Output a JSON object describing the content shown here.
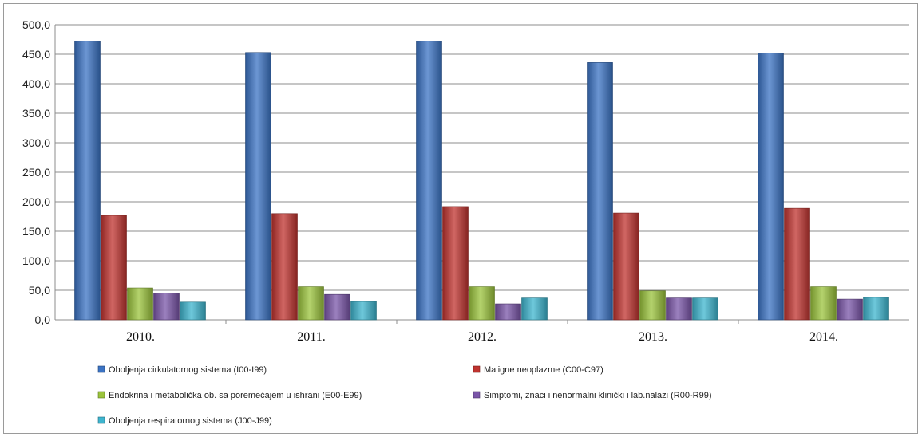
{
  "chart_data": {
    "type": "bar",
    "categories": [
      "2010.",
      "2011.",
      "2012.",
      "2013.",
      "2014."
    ],
    "ylim": [
      0,
      500
    ],
    "y_ticks": [
      "0,0",
      "50,0",
      "100,0",
      "150,0",
      "200,0",
      "250,0",
      "300,0",
      "350,0",
      "400,0",
      "450,0",
      "500,0"
    ],
    "grid": true,
    "legend_position": "bottom",
    "series": [
      {
        "name": "Oboljenja cirkulatornog sistema (I00-I99)",
        "color": "#3b73c4",
        "values": [
          472,
          453,
          472,
          436,
          452
        ]
      },
      {
        "name": "Maligne neoplazme (C00-C97)",
        "color": "#c0332f",
        "values": [
          177,
          180,
          192,
          181,
          189
        ]
      },
      {
        "name": "Endokrina i metabolička ob. sa poremećajem u ishrani (E00-E99)",
        "color": "#9bc43c",
        "values": [
          54,
          56,
          56,
          49,
          56
        ]
      },
      {
        "name": "Simptomi, znaci i nenormalni klinički i lab.nalazi (R00-R99)",
        "color": "#7a55a8",
        "values": [
          45,
          43,
          27,
          37,
          35
        ]
      },
      {
        "name": "Oboljenja respiratornog sistema (J00-J99)",
        "color": "#3eb5cf",
        "values": [
          30,
          31,
          37,
          37,
          38
        ]
      }
    ]
  }
}
